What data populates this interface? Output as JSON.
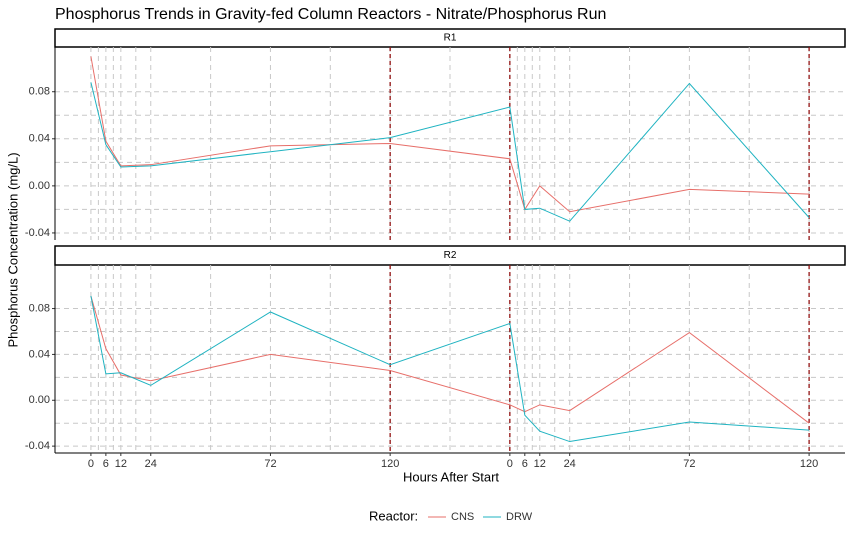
{
  "chart_data": {
    "type": "line",
    "title": "Phosphorus Trends in Gravity-fed Column Reactors - Nitrate/Phosphorus Run",
    "x_label": "Hours After Start",
    "y_label": "Phosphorus Concentration (mg/L)",
    "legend_title": "Reactor:",
    "legend_position": "bottom",
    "grid": true,
    "x": [
      0,
      6,
      12,
      24,
      72,
      120,
      168,
      174,
      180,
      192,
      240,
      288
    ],
    "xlim": [
      -14.4,
      302.4
    ],
    "xticks": [
      0,
      6,
      12,
      24,
      72,
      120,
      {
        "value": 168,
        "label": "0"
      },
      {
        "value": 174,
        "label": "6"
      },
      {
        "value": 180,
        "label": "12"
      },
      {
        "value": 192,
        "label": "24"
      },
      {
        "value": 240,
        "label": "72"
      },
      {
        "value": 288,
        "label": "120"
      }
    ],
    "ylim": [
      -0.046,
      0.118
    ],
    "yticks": [
      -0.04,
      {
        "value": 0,
        "label": "0.00"
      },
      0.04,
      0.08
    ],
    "vlines": [
      120,
      168,
      288
    ],
    "vline_color": "#8b0000",
    "panels": [
      {
        "name": "R1",
        "series": [
          {
            "name": "CNS",
            "color": "#e76f6a",
            "values": [
              0.11,
              0.038,
              0.017,
              0.018,
              0.034,
              0.036,
              0.023,
              -0.02,
              0.0,
              -0.022,
              -0.003,
              -0.007
            ]
          },
          {
            "name": "DRW",
            "color": "#1fb3c1",
            "values": [
              0.088,
              0.035,
              0.016,
              0.017,
              0.029,
              0.041,
              0.067,
              -0.02,
              -0.019,
              -0.03,
              0.087,
              -0.027
            ]
          }
        ]
      },
      {
        "name": "R2",
        "series": [
          {
            "name": "CNS",
            "color": "#e76f6a",
            "values": [
              0.091,
              0.045,
              0.022,
              0.017,
              0.04,
              0.026,
              -0.004,
              -0.01,
              -0.004,
              -0.009,
              0.059,
              -0.02
            ]
          },
          {
            "name": "DRW",
            "color": "#1fb3c1",
            "values": [
              0.091,
              0.023,
              0.024,
              0.013,
              0.077,
              0.031,
              0.067,
              -0.013,
              -0.027,
              -0.036,
              -0.019,
              -0.026
            ]
          }
        ]
      }
    ]
  }
}
